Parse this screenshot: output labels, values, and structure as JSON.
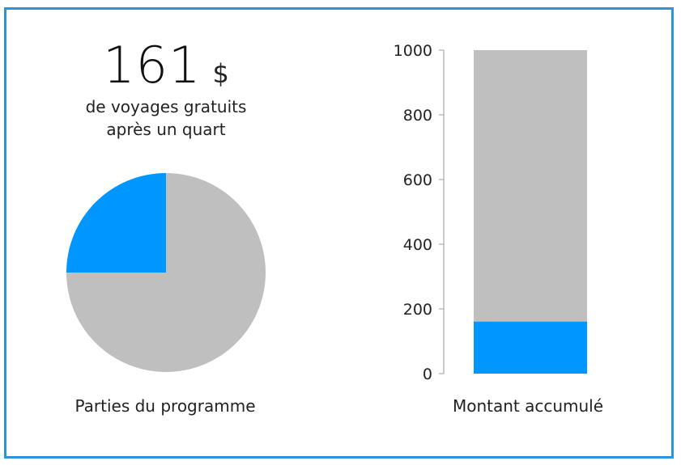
{
  "headline": {
    "value": "161",
    "unit": "$",
    "line1": "de voyages gratuits",
    "line2": "après un quart"
  },
  "colors": {
    "highlight": "#0096ff",
    "remainder": "#bfbfbf",
    "frame": "#2b93e0"
  },
  "chart_data": [
    {
      "type": "pie",
      "title": "",
      "caption": "Parties du programme",
      "slices": [
        {
          "value": 25,
          "color": "#0096ff"
        },
        {
          "value": 75,
          "color": "#bfbfbf"
        }
      ]
    },
    {
      "type": "bar",
      "caption": "Montant accumulé",
      "stacked": true,
      "categories": [
        ""
      ],
      "ylim": [
        0,
        1000
      ],
      "yticks": [
        "0",
        "200",
        "400",
        "600",
        "800",
        "1000"
      ],
      "series": [
        {
          "values": [
            161
          ],
          "color": "#0096ff"
        },
        {
          "values": [
            839
          ],
          "color": "#bfbfbf"
        }
      ]
    }
  ]
}
